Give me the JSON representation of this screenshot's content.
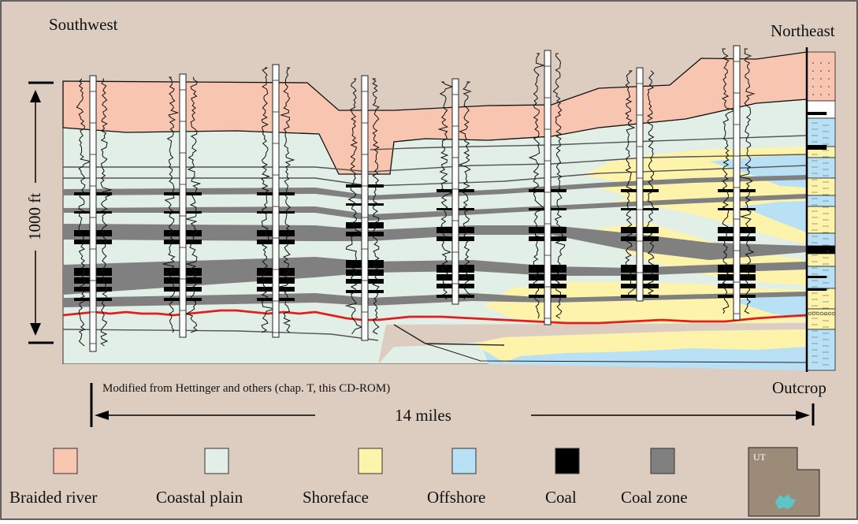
{
  "labels": {
    "southwest": "Southwest",
    "northeast": "Northeast",
    "scale": "1000 ft",
    "credit": "Modified from Hettinger and others (chap. T, this CD-ROM)",
    "outcrop": "Outcrop",
    "distance": "14 miles",
    "state": "UT"
  },
  "legend": [
    {
      "label": "Braided river",
      "color": "#f8c5b0"
    },
    {
      "label": "Coastal plain",
      "color": "#e1efe6"
    },
    {
      "label": "Shoreface",
      "color": "#fdf3aa"
    },
    {
      "label": "Offshore",
      "color": "#b9e1f5"
    },
    {
      "label": "Coal",
      "color": "#000000"
    },
    {
      "label": "Coal zone",
      "color": "#808080"
    }
  ],
  "colors": {
    "background": "#dccdc0",
    "braided_river": "#f8c5b0",
    "coastal_plain": "#e1efe6",
    "shoreface": "#fdf3aa",
    "offshore": "#b9e1f5",
    "coal": "#000000",
    "coal_zone": "#808080",
    "datum_line": "#e0201f",
    "utah_map": "#9b8b78",
    "study_area": "#5fc4c8"
  }
}
